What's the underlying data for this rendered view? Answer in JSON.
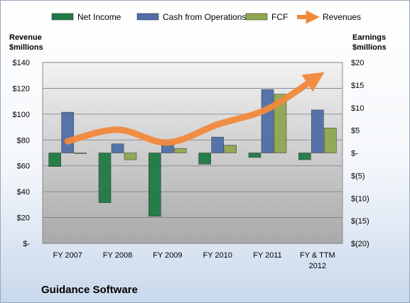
{
  "chart_data": {
    "type": "bar",
    "title": "Guidance Software",
    "categories": [
      "FY 2007",
      "FY 2008",
      "FY 2009",
      "FY 2010",
      "FY 2011",
      "FY & TTM 2012"
    ],
    "series": [
      {
        "name": "Net Income",
        "axis": "right",
        "type": "bar",
        "color": "#1f7a45",
        "values": [
          -3,
          -11,
          -14,
          -2.5,
          -1,
          -1.5
        ]
      },
      {
        "name": "Cash from Operations",
        "axis": "right",
        "type": "bar",
        "color": "#4f6fa8",
        "values": [
          9,
          2,
          2.5,
          3.5,
          14,
          9.5
        ]
      },
      {
        "name": "FCF",
        "axis": "right",
        "type": "bar",
        "color": "#8fa84f",
        "values": [
          0,
          -1.5,
          1,
          1.7,
          13,
          5.5
        ]
      },
      {
        "name": "Revenues",
        "axis": "left",
        "type": "line",
        "color": "#f28a3c",
        "values": [
          79,
          88,
          78,
          92,
          104,
          129
        ]
      }
    ],
    "ylabel_left": [
      "Revenue",
      "$millions"
    ],
    "ylabel_right": [
      "Earnings",
      "$millions"
    ],
    "ylim_left": [
      0,
      140
    ],
    "ylim_right": [
      -20,
      20
    ],
    "yticks_left": [
      "$140",
      "$120",
      "$100",
      "$80",
      "$60",
      "$40",
      "$20",
      "$-"
    ],
    "yticks_right": [
      "$20",
      "$15",
      "$10",
      "$5",
      "$-",
      "$(5)",
      "$(10)",
      "$(15)",
      "$(20)"
    ],
    "legend": "top",
    "grid": true
  }
}
